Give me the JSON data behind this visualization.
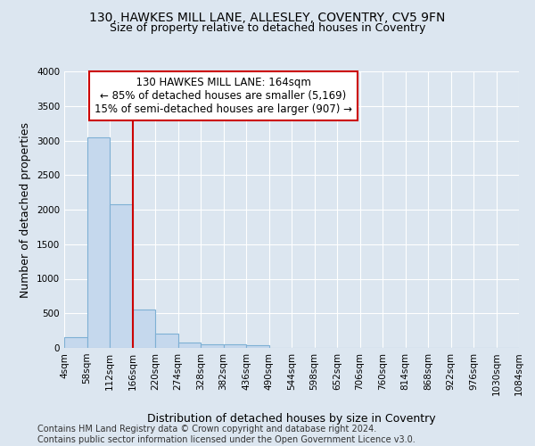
{
  "title1": "130, HAWKES MILL LANE, ALLESLEY, COVENTRY, CV5 9FN",
  "title2": "Size of property relative to detached houses in Coventry",
  "xlabel": "Distribution of detached houses by size in Coventry",
  "ylabel": "Number of detached properties",
  "footer1": "Contains HM Land Registry data © Crown copyright and database right 2024.",
  "footer2": "Contains public sector information licensed under the Open Government Licence v3.0.",
  "annotation_line1": "130 HAWKES MILL LANE: 164sqm",
  "annotation_line2": "← 85% of detached houses are smaller (5,169)",
  "annotation_line3": "15% of semi-detached houses are larger (907) →",
  "bins": [
    4,
    58,
    112,
    166,
    220,
    274,
    328,
    382,
    436,
    490,
    544,
    598,
    652,
    706,
    760,
    814,
    868,
    922,
    976,
    1030,
    1084
  ],
  "counts": [
    150,
    3040,
    2075,
    550,
    210,
    82,
    57,
    47,
    38,
    0,
    0,
    0,
    0,
    0,
    0,
    0,
    0,
    0,
    0,
    0
  ],
  "bar_color": "#c5d8ed",
  "bar_edge_color": "#7eb0d4",
  "vline_color": "#cc0000",
  "vline_x": 166,
  "annotation_box_color": "#ffffff",
  "annotation_box_edge": "#cc0000",
  "ylim": [
    0,
    4000
  ],
  "yticks": [
    0,
    500,
    1000,
    1500,
    2000,
    2500,
    3000,
    3500,
    4000
  ],
  "bg_color": "#dce6f0",
  "plot_bg_color": "#dce6f0",
  "grid_color": "#ffffff",
  "title1_fontsize": 10,
  "title2_fontsize": 9,
  "axis_label_fontsize": 9,
  "tick_fontsize": 7.5,
  "footer_fontsize": 7,
  "ann_fontsize": 8.5
}
